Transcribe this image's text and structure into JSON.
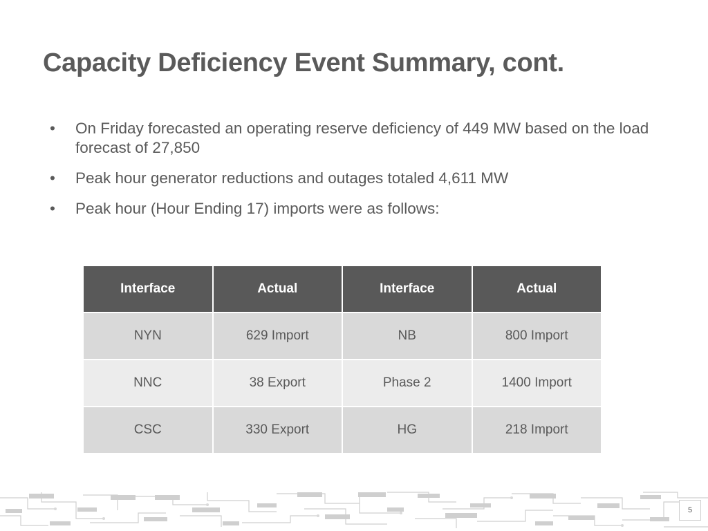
{
  "slide": {
    "title": "Capacity Deficiency Event Summary, cont.",
    "bullets": [
      "On Friday forecasted an operating reserve deficiency of 449 MW based on the load forecast of 27,850",
      "Peak hour generator reductions and outages totaled 4,611 MW",
      "Peak hour (Hour Ending 17) imports were as follows:"
    ],
    "bullet_glyph": "•",
    "page_number": "5"
  },
  "table": {
    "headers": [
      "Interface",
      "Actual",
      "Interface",
      "Actual"
    ],
    "rows": [
      [
        "NYN",
        "629 Import",
        "NB",
        "800 Import"
      ],
      [
        "NNC",
        "38 Export",
        "Phase 2",
        "1400 Import"
      ],
      [
        "CSC",
        "330 Export",
        "HG",
        "218 Import"
      ]
    ]
  },
  "colors": {
    "title": "#5a5a5a",
    "header_bg": "#595959",
    "row_dark": "#d9d9d9",
    "row_light": "#ececec",
    "circuit": "#c8c8c8"
  }
}
